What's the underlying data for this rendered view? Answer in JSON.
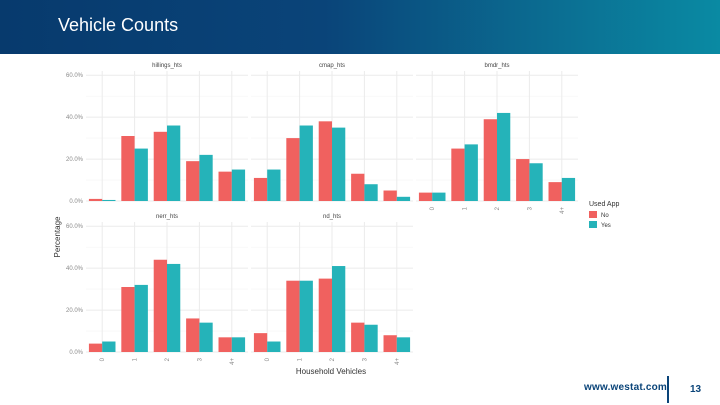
{
  "header": {
    "title": "Vehicle Counts"
  },
  "footer": {
    "url": "www.westat.com",
    "page_number": "13"
  },
  "colors": {
    "no": "#f0615f",
    "yes": "#25b3b9",
    "grid": "#ebebeb"
  },
  "chart_data": {
    "type": "bar",
    "ylabel": "Percentage",
    "xlabel": "Household Vehicles",
    "y_ticks": [
      "0.0%",
      "20.0%",
      "40.0%",
      "60.0%"
    ],
    "ylim": [
      0,
      62
    ],
    "categories": [
      "0",
      "1",
      "2",
      "3",
      "4+"
    ],
    "legend": {
      "title": "Used App",
      "items": [
        "No",
        "Yes"
      ]
    },
    "panels": [
      {
        "title": "hillings_hts",
        "no": [
          1,
          31,
          33,
          19,
          14
        ],
        "yes": [
          0.5,
          25,
          36,
          22,
          15
        ]
      },
      {
        "title": "cmap_hts",
        "no": [
          11,
          30,
          38,
          13,
          5
        ],
        "yes": [
          15,
          36,
          35,
          8,
          2
        ]
      },
      {
        "title": "bmdr_hts",
        "no": [
          4,
          25,
          39,
          20,
          9
        ],
        "yes": [
          4,
          27,
          42,
          18,
          11
        ]
      },
      {
        "title": "nerr_hts",
        "no": [
          4,
          31,
          44,
          16,
          7
        ],
        "yes": [
          5,
          32,
          42,
          14,
          7
        ]
      },
      {
        "title": "nd_hts",
        "no": [
          9,
          34,
          35,
          14,
          8
        ],
        "yes": [
          5,
          34,
          41,
          13,
          7
        ]
      }
    ]
  }
}
